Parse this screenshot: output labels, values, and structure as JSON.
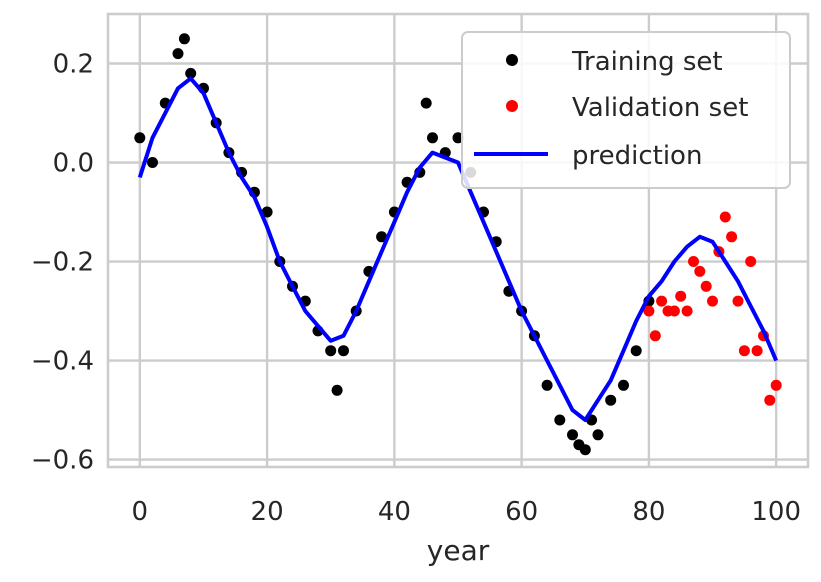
{
  "chart_data": {
    "type": "scatter",
    "title": "",
    "xlabel": "year",
    "ylabel": "",
    "xlim": [
      -5,
      105
    ],
    "ylim": [
      -0.615,
      0.3
    ],
    "xticks": [
      0,
      20,
      40,
      60,
      80,
      100
    ],
    "yticks": [
      0.2,
      0.0,
      -0.2,
      -0.4,
      -0.6
    ],
    "xtick_labels": [
      "0",
      "20",
      "40",
      "60",
      "80",
      "100"
    ],
    "ytick_labels": [
      "0.2",
      "0.0",
      "−0.2",
      "−0.4",
      "−0.6"
    ],
    "grid": true,
    "legend_position": "upper right",
    "series": [
      {
        "name": "Training set",
        "kind": "scatter",
        "color": "#000000",
        "x": [
          0,
          2,
          4,
          6,
          7,
          8,
          10,
          12,
          14,
          16,
          18,
          20,
          22,
          24,
          26,
          28,
          30,
          31,
          32,
          34,
          36,
          38,
          40,
          42,
          44,
          45,
          46,
          48,
          50,
          52,
          54,
          56,
          58,
          60,
          62,
          64,
          66,
          68,
          69,
          70,
          71,
          72,
          74,
          76,
          78,
          80
        ],
        "y": [
          0.05,
          0.0,
          0.12,
          0.22,
          0.25,
          0.18,
          0.15,
          0.08,
          0.02,
          -0.02,
          -0.06,
          -0.1,
          -0.2,
          -0.25,
          -0.28,
          -0.34,
          -0.38,
          -0.46,
          -0.38,
          -0.3,
          -0.22,
          -0.15,
          -0.1,
          -0.04,
          -0.02,
          0.12,
          0.05,
          0.02,
          0.05,
          -0.02,
          -0.1,
          -0.16,
          -0.26,
          -0.3,
          -0.35,
          -0.45,
          -0.52,
          -0.55,
          -0.57,
          -0.58,
          -0.52,
          -0.55,
          -0.48,
          -0.45,
          -0.38,
          -0.28
        ]
      },
      {
        "name": "Validation set",
        "kind": "scatter",
        "color": "#ff0000",
        "x": [
          80,
          81,
          82,
          83,
          84,
          85,
          86,
          87,
          88,
          89,
          90,
          91,
          92,
          93,
          94,
          95,
          96,
          97,
          98,
          99,
          100
        ],
        "y": [
          -0.3,
          -0.35,
          -0.28,
          -0.3,
          -0.3,
          -0.27,
          -0.3,
          -0.2,
          -0.22,
          -0.25,
          -0.28,
          -0.18,
          -0.11,
          -0.15,
          -0.28,
          -0.38,
          -0.2,
          -0.38,
          -0.35,
          -0.48,
          -0.45
        ]
      },
      {
        "name": "prediction",
        "kind": "line",
        "color": "#0000ff",
        "x": [
          0,
          2,
          4,
          6,
          8,
          10,
          12,
          14,
          16,
          18,
          20,
          22,
          24,
          26,
          28,
          30,
          32,
          34,
          36,
          38,
          40,
          42,
          44,
          46,
          48,
          50,
          52,
          54,
          56,
          58,
          60,
          62,
          64,
          66,
          68,
          70,
          72,
          74,
          76,
          78,
          80,
          82,
          84,
          86,
          88,
          90,
          92,
          94,
          96,
          98,
          100
        ],
        "y": [
          -0.03,
          0.05,
          0.1,
          0.15,
          0.17,
          0.14,
          0.08,
          0.02,
          -0.03,
          -0.07,
          -0.13,
          -0.2,
          -0.25,
          -0.3,
          -0.33,
          -0.36,
          -0.35,
          -0.3,
          -0.24,
          -0.18,
          -0.12,
          -0.06,
          -0.01,
          0.02,
          0.01,
          0.0,
          -0.06,
          -0.12,
          -0.18,
          -0.24,
          -0.3,
          -0.35,
          -0.4,
          -0.45,
          -0.5,
          -0.52,
          -0.48,
          -0.44,
          -0.38,
          -0.32,
          -0.27,
          -0.24,
          -0.2,
          -0.17,
          -0.15,
          -0.16,
          -0.2,
          -0.24,
          -0.29,
          -0.34,
          -0.4
        ]
      }
    ]
  }
}
